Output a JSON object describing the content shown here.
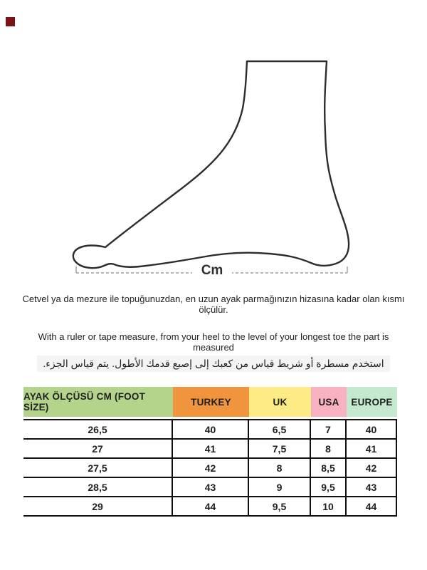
{
  "corner_mark": {
    "color": "#7b1315"
  },
  "diagram": {
    "name": "foot-side-profile-outline",
    "cm_label": "Cm",
    "outline_color": "#2d2d2d",
    "measure_line_color": "#9b9b9b"
  },
  "instructions": {
    "turkish": "Cetvel ya da mezure ile topuğunuzdan, en uzun ayak parmağınızın hizasına kadar olan kısmı ölçülür.",
    "english": "With a ruler or tape measure, from your heel to the level of your longest toe the part is measured",
    "arabic": "استخدم مسطرة أو شريط قياس من كعبك إلى إصبع قدمك الأطول.  يتم قياس الجزء."
  },
  "size_table": {
    "headers": [
      {
        "label": "AYAK ÖLÇÜSÜ CM (FOOT SİZE)",
        "color": "#b5d48b"
      },
      {
        "label": "TURKEY",
        "color": "#f1943e"
      },
      {
        "label": "UK",
        "color": "#fdeb86"
      },
      {
        "label": "USA",
        "color": "#f7b1c1"
      },
      {
        "label": "EUROPE",
        "color": "#c4e9ce"
      }
    ],
    "rows": [
      [
        "26,5",
        "40",
        "6,5",
        "7",
        "40"
      ],
      [
        "27",
        "41",
        "7,5",
        "8",
        "41"
      ],
      [
        "27,5",
        "42",
        "8",
        "8,5",
        "42"
      ],
      [
        "28,5",
        "43",
        "9",
        "9,5",
        "43"
      ],
      [
        "29",
        "44",
        "9,5",
        "10",
        "44"
      ]
    ]
  }
}
